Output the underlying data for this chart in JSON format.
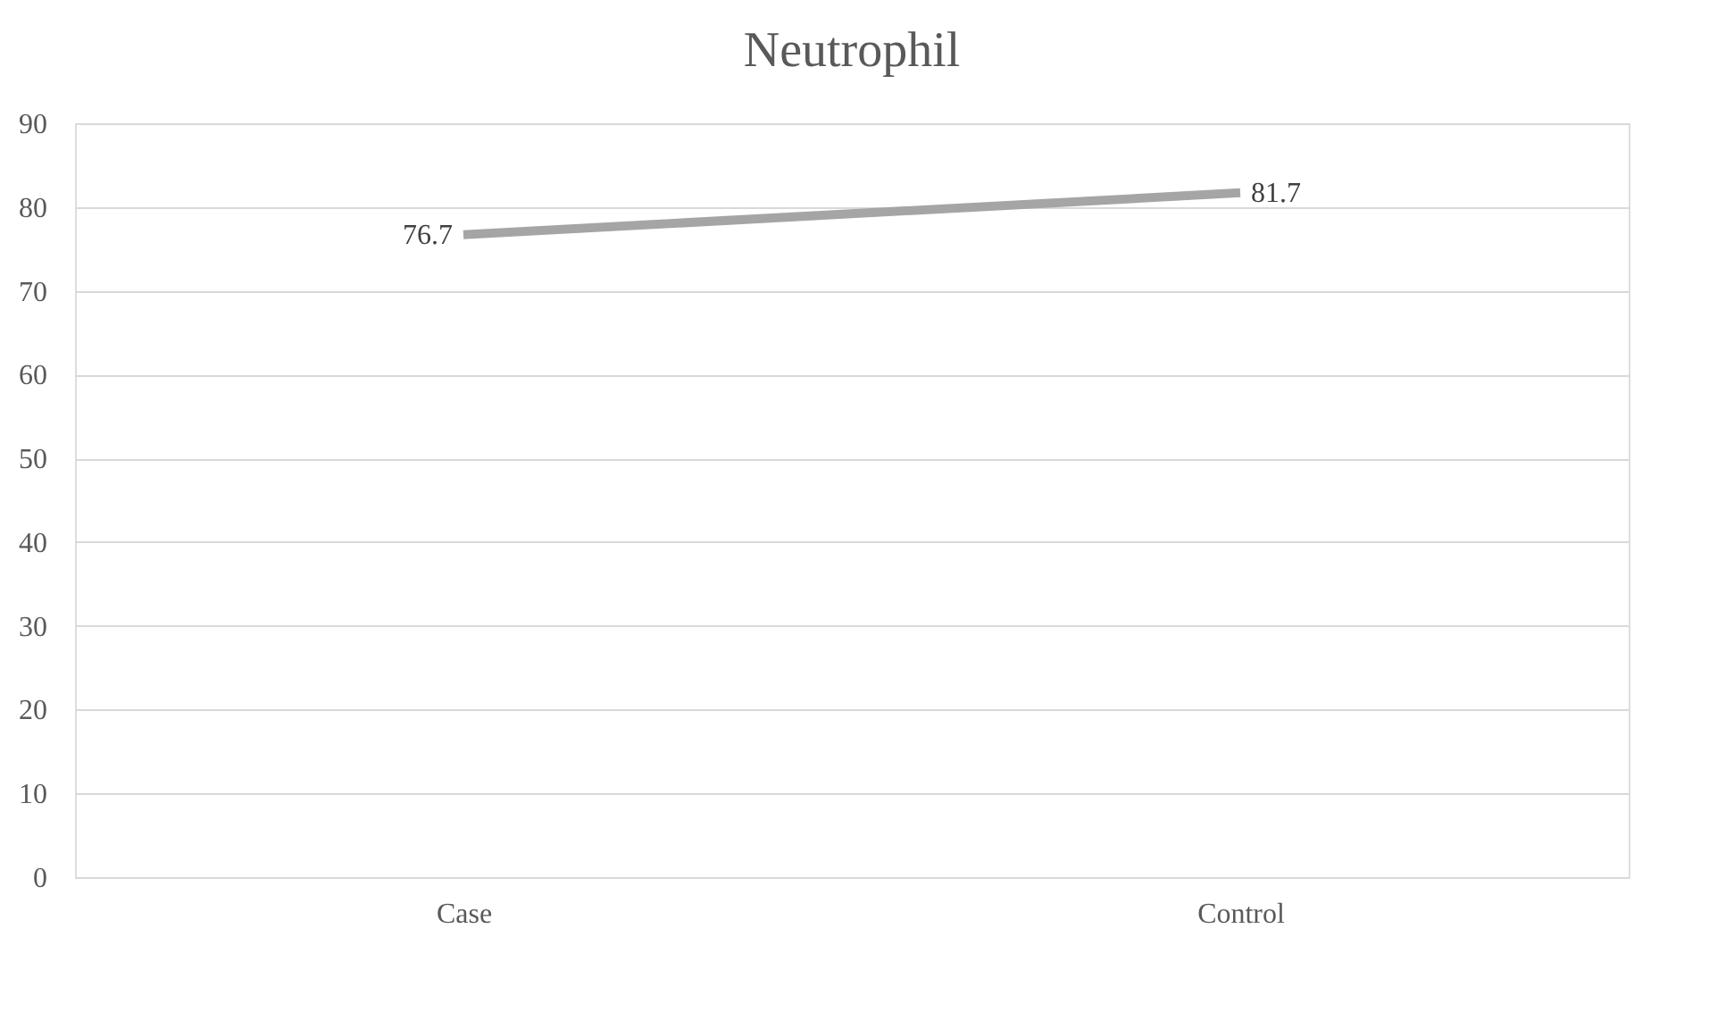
{
  "chart_data": {
    "type": "line",
    "title": "Neutrophil",
    "categories": [
      "Case",
      "Control"
    ],
    "series": [
      {
        "color": "#a5a5a5",
        "values": [
          76.7,
          81.7
        ]
      }
    ],
    "ylim": [
      0,
      90
    ],
    "yticks": [
      0,
      10,
      20,
      30,
      40,
      50,
      60,
      70,
      80,
      90
    ],
    "grid": "y",
    "data_labels": true,
    "legend": false,
    "marker": "none"
  }
}
